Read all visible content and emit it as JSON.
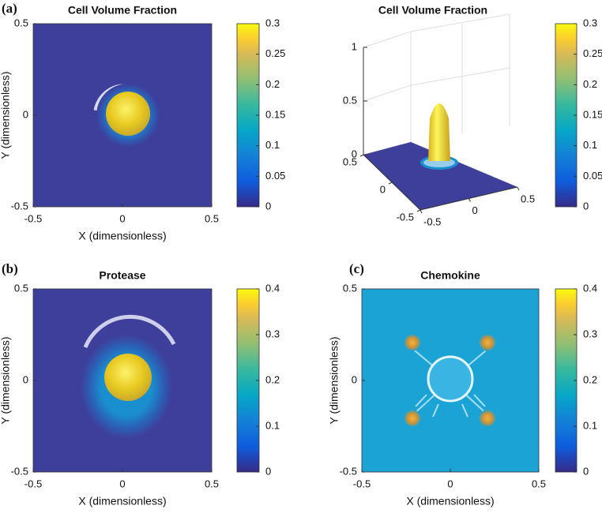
{
  "chart_data": [
    {
      "type": "heatmap",
      "label": "(a)",
      "title": "Cell Volume Fraction",
      "xlabel": "X (dimensionless)",
      "ylabel": "Y (dimensionless)",
      "xlim": [
        -0.5,
        0.5
      ],
      "xticks": [
        -0.5,
        0,
        0.5
      ],
      "ylim": [
        -0.5,
        0.5
      ],
      "yticks": [
        -0.5,
        0,
        0.5
      ],
      "clim": [
        0,
        0.3
      ],
      "cticks": [
        0,
        0.05,
        0.1,
        0.15,
        0.2,
        0.25,
        0.3
      ]
    },
    {
      "type": "surface",
      "title": "Cell Volume Fraction",
      "xlim": [
        -0.5,
        0.5
      ],
      "xticks": [
        -0.5,
        0,
        0.5
      ],
      "ylim": [
        -0.5,
        0.5
      ],
      "yticks": [
        -0.5,
        0,
        0.5
      ],
      "zlim": [
        0,
        1
      ],
      "zticks": [
        0,
        0.5,
        1
      ],
      "clim": [
        0,
        0.3
      ],
      "cticks": [
        0,
        0.05,
        0.1,
        0.15,
        0.2,
        0.25,
        0.3
      ]
    },
    {
      "type": "heatmap",
      "label": "(b)",
      "title": "Protease",
      "xlabel": "X (dimensionless)",
      "ylabel": "Y (dimensionless)",
      "xlim": [
        -0.5,
        0.5
      ],
      "xticks": [
        -0.5,
        0,
        0.5
      ],
      "ylim": [
        -0.5,
        0.5
      ],
      "yticks": [
        -0.5,
        0,
        0.5
      ],
      "clim": [
        0,
        0.4
      ],
      "cticks": [
        0,
        0.1,
        0.2,
        0.3,
        0.4
      ]
    },
    {
      "type": "heatmap",
      "label": "(c)",
      "title": "Chemokine",
      "xlabel": "X (dimensionless)",
      "ylabel": "Y (dimensionless)",
      "xlim": [
        -0.5,
        0.5
      ],
      "xticks": [
        -0.5,
        0,
        0.5
      ],
      "ylim": [
        -0.5,
        0.5
      ],
      "yticks": [
        -0.5,
        0,
        0.5
      ],
      "clim": [
        0,
        0.4
      ],
      "cticks": [
        0,
        0.1,
        0.2,
        0.3,
        0.4
      ]
    }
  ]
}
